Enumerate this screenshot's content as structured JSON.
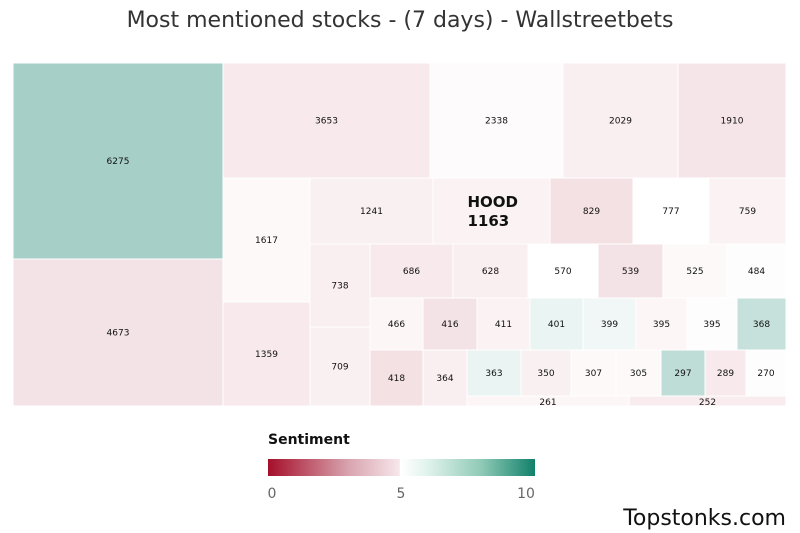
{
  "title": "Most mentioned stocks - (7 days) - Wallstreetbets",
  "brand": "Topstonks.com",
  "legend": {
    "title": "Sentiment",
    "ticks": [
      "0",
      "5",
      "10"
    ]
  },
  "chart_data": {
    "type": "treemap",
    "title": "Most mentioned stocks - (7 days) - Wallstreetbets",
    "color_scale": {
      "min": 0,
      "mid": 5,
      "max": 10,
      "low_color": "#a50f2a",
      "mid_color": "#ffffff",
      "high_color": "#11806a"
    },
    "cells": [
      {
        "label": "",
        "value": 6275,
        "sentiment": 7.5
      },
      {
        "label": "",
        "value": 4673,
        "sentiment": 3.7
      },
      {
        "label": "",
        "value": 3653,
        "sentiment": 4.0
      },
      {
        "label": "",
        "value": 2338,
        "sentiment": 4.8
      },
      {
        "label": "",
        "value": 2029,
        "sentiment": 4.2
      },
      {
        "label": "",
        "value": 1910,
        "sentiment": 3.8
      },
      {
        "label": "",
        "value": 1617,
        "sentiment": 4.7
      },
      {
        "label": "",
        "value": 1359,
        "sentiment": 4.0
      },
      {
        "label": "",
        "value": 1241,
        "sentiment": 4.3
      },
      {
        "label": "HOOD",
        "value": 1163,
        "sentiment": 4.4
      },
      {
        "label": "",
        "value": 829,
        "sentiment": 3.6
      },
      {
        "label": "",
        "value": 777,
        "sentiment": 5.0
      },
      {
        "label": "",
        "value": 759,
        "sentiment": 4.4
      },
      {
        "label": "",
        "value": 738,
        "sentiment": 4.2
      },
      {
        "label": "",
        "value": 709,
        "sentiment": 4.3
      },
      {
        "label": "",
        "value": 686,
        "sentiment": 4.0
      },
      {
        "label": "",
        "value": 628,
        "sentiment": 4.2
      },
      {
        "label": "",
        "value": 570,
        "sentiment": 5.0
      },
      {
        "label": "",
        "value": 539,
        "sentiment": 3.7
      },
      {
        "label": "",
        "value": 525,
        "sentiment": 4.7
      },
      {
        "label": "",
        "value": 484,
        "sentiment": 4.9
      },
      {
        "label": "",
        "value": 466,
        "sentiment": 4.6
      },
      {
        "label": "",
        "value": 418,
        "sentiment": 3.6
      },
      {
        "label": "",
        "value": 416,
        "sentiment": 3.7
      },
      {
        "label": "",
        "value": 411,
        "sentiment": 4.4
      },
      {
        "label": "",
        "value": 401,
        "sentiment": 5.6
      },
      {
        "label": "",
        "value": 399,
        "sentiment": 5.4
      },
      {
        "label": "",
        "value": 395,
        "sentiment": 4.6
      },
      {
        "label": "",
        "value": 395,
        "sentiment": 4.9
      },
      {
        "label": "",
        "value": 368,
        "sentiment": 6.6
      },
      {
        "label": "",
        "value": 364,
        "sentiment": 4.2
      },
      {
        "label": "",
        "value": 363,
        "sentiment": 5.6
      },
      {
        "label": "",
        "value": 350,
        "sentiment": 4.3
      },
      {
        "label": "",
        "value": 307,
        "sentiment": 4.7
      },
      {
        "label": "",
        "value": 305,
        "sentiment": 4.7
      },
      {
        "label": "",
        "value": 297,
        "sentiment": 6.8
      },
      {
        "label": "",
        "value": 289,
        "sentiment": 4.0
      },
      {
        "label": "",
        "value": 270,
        "sentiment": 4.9
      },
      {
        "label": "",
        "value": 261,
        "sentiment": 4.6
      },
      {
        "label": "",
        "value": 252,
        "sentiment": 4.1
      }
    ]
  }
}
